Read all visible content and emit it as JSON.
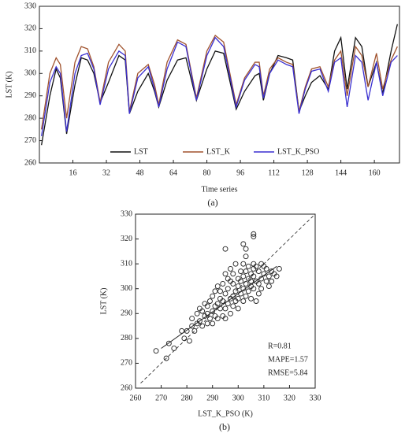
{
  "chart_data": [
    {
      "type": "line",
      "ylabel": "LST (K)",
      "xlabel": "Time series",
      "caption": "(a)",
      "xlim": [
        0,
        172
      ],
      "xticks": [
        16,
        32,
        48,
        64,
        80,
        96,
        112,
        128,
        144,
        160
      ],
      "ylim": [
        260,
        330
      ],
      "yticks": [
        260,
        270,
        280,
        290,
        300,
        310,
        320,
        330
      ],
      "x": [
        1,
        5,
        8,
        10,
        13,
        17,
        20,
        23,
        26,
        29,
        33,
        38,
        41,
        43,
        47,
        52,
        55,
        57,
        61,
        66,
        70,
        75,
        80,
        84,
        88,
        94,
        98,
        103,
        105,
        107,
        110,
        114,
        118,
        121,
        124,
        127,
        130,
        134,
        138,
        141,
        144,
        147,
        151,
        154,
        157,
        161,
        164,
        168,
        171
      ],
      "series": [
        {
          "name": "LST",
          "color": "#111111",
          "values": [
            268,
            290,
            302,
            298,
            273,
            295,
            307,
            306,
            300,
            287,
            296,
            308,
            306,
            282,
            292,
            300,
            292,
            285,
            297,
            306,
            307,
            288,
            302,
            310,
            309,
            284,
            292,
            299,
            300,
            288,
            300,
            308,
            307,
            306,
            283,
            290,
            296,
            299,
            293,
            310,
            316,
            293,
            316,
            312,
            294,
            305,
            291,
            310,
            322
          ]
        },
        {
          "name": "LST_K",
          "color": "#a0522d",
          "values": [
            275,
            300,
            307,
            304,
            280,
            305,
            312,
            311,
            303,
            287,
            305,
            313,
            310,
            283,
            300,
            304,
            295,
            286,
            305,
            315,
            313,
            289,
            310,
            317,
            314,
            286,
            298,
            305,
            305,
            290,
            302,
            307,
            305,
            304,
            283,
            294,
            302,
            303,
            294,
            306,
            310,
            290,
            312,
            308,
            294,
            309,
            293,
            306,
            312
          ]
        },
        {
          "name": "LST_K_PSO",
          "color": "#3a2fd0",
          "values": [
            272,
            296,
            303,
            300,
            274,
            300,
            308,
            309,
            302,
            286,
            302,
            310,
            308,
            282,
            298,
            303,
            293,
            285,
            302,
            314,
            312,
            288,
            308,
            316,
            312,
            285,
            297,
            304,
            303,
            289,
            300,
            306,
            304,
            303,
            282,
            293,
            301,
            302,
            292,
            305,
            307,
            285,
            308,
            305,
            288,
            305,
            290,
            305,
            308
          ]
        }
      ]
    },
    {
      "type": "scatter",
      "ylabel": "LST (K)",
      "xlabel": "LST_K_PSO (K)",
      "caption": "(b)",
      "xlim": [
        260,
        330
      ],
      "xticks": [
        260,
        270,
        280,
        290,
        300,
        310,
        320,
        330
      ],
      "ylim": [
        260,
        330
      ],
      "yticks": [
        260,
        270,
        280,
        290,
        300,
        310,
        320,
        330
      ],
      "annotations": [
        "R=0.81",
        "MAPE=1.57",
        "RMSE=5.84"
      ],
      "fit_line": {
        "x": [
          270,
          315
        ],
        "y": [
          276,
          309
        ]
      },
      "diagonal": {
        "x": [
          262,
          330
        ],
        "y": [
          262,
          330
        ]
      },
      "x": [
        268,
        272,
        273,
        275,
        278,
        279,
        280,
        281,
        282,
        282,
        283,
        284,
        284,
        285,
        285,
        286,
        286,
        287,
        287,
        288,
        288,
        288,
        289,
        289,
        290,
        290,
        290,
        291,
        291,
        291,
        292,
        292,
        292,
        293,
        293,
        293,
        294,
        294,
        294,
        295,
        295,
        295,
        295,
        296,
        296,
        296,
        297,
        297,
        297,
        297,
        298,
        298,
        298,
        298,
        299,
        299,
        299,
        300,
        300,
        300,
        300,
        301,
        301,
        301,
        302,
        302,
        302,
        302,
        303,
        303,
        303,
        303,
        304,
        304,
        304,
        305,
        305,
        305,
        305,
        306,
        306,
        306,
        306,
        307,
        307,
        307,
        308,
        308,
        308,
        309,
        309,
        309,
        310,
        310,
        311,
        311,
        312,
        312,
        313,
        313,
        314,
        315,
        316,
        295,
        302,
        306,
        306,
        303
      ],
      "values": [
        275,
        272,
        278,
        276,
        283,
        280,
        283,
        279,
        285,
        288,
        283,
        290,
        286,
        292,
        287,
        285,
        291,
        289,
        294,
        286,
        293,
        290,
        295,
        288,
        297,
        291,
        286,
        299,
        293,
        289,
        301,
        294,
        288,
        296,
        292,
        299,
        302,
        295,
        289,
        306,
        298,
        292,
        288,
        300,
        294,
        304,
        296,
        290,
        303,
        308,
        297,
        302,
        293,
        306,
        299,
        295,
        310,
        301,
        296,
        304,
        292,
        307,
        298,
        303,
        300,
        295,
        310,
        305,
        297,
        302,
        313,
        307,
        299,
        304,
        309,
        301,
        306,
        296,
        303,
        310,
        300,
        305,
        308,
        295,
        303,
        309,
        302,
        307,
        298,
        304,
        310,
        300,
        306,
        309,
        303,
        308,
        305,
        301,
        307,
        303,
        306,
        305,
        308,
        316,
        318,
        322,
        321,
        316
      ]
    }
  ]
}
